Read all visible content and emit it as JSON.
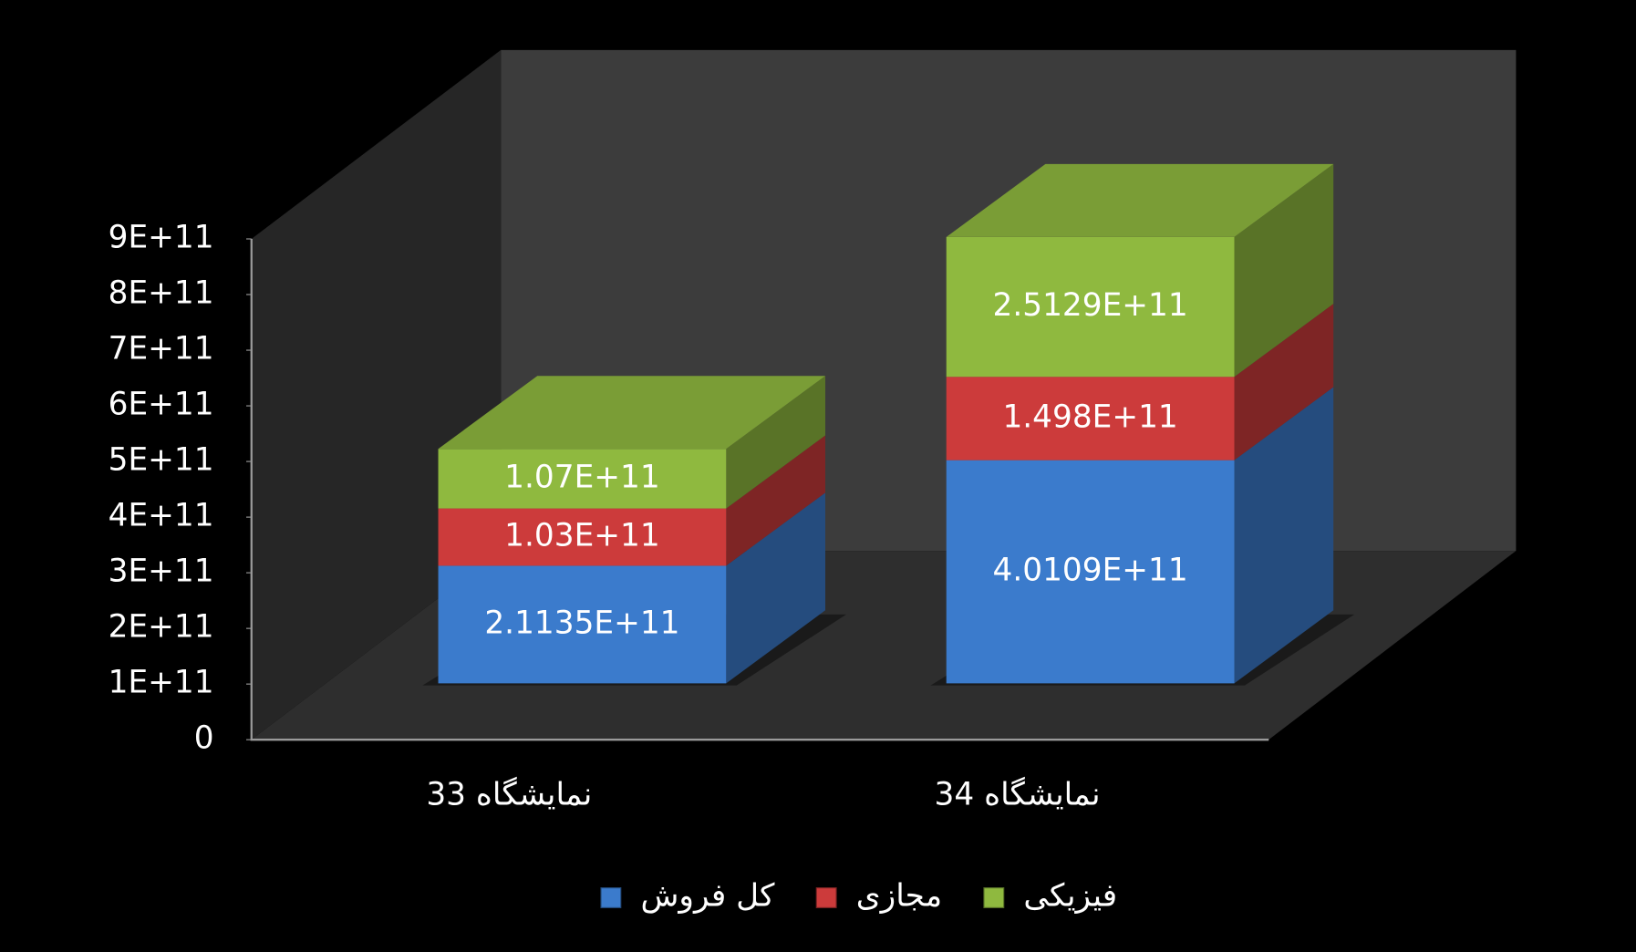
{
  "chart_data": {
    "type": "bar3d-stacked",
    "categories": [
      "نمایشگاه 33",
      "نمایشگاه 34"
    ],
    "series": [
      {
        "name": "کل فروش",
        "color": "#3b7bcc",
        "values": [
          211350000000,
          401090000000
        ],
        "value_labels": [
          "2.1135E+11",
          "4.0109E+11"
        ]
      },
      {
        "name": "مجازی",
        "color": "#cc3b3b",
        "values": [
          103000000000,
          149800000000
        ],
        "value_labels": [
          "1.03E+11",
          "1.498E+11"
        ]
      },
      {
        "name": "فیزیکی",
        "color": "#8fb93f",
        "values": [
          107000000000,
          251290000000
        ],
        "value_labels": [
          "1.07E+11",
          "2.5129E+11"
        ]
      }
    ],
    "ylim": [
      0,
      900000000000
    ],
    "yticks": [
      0,
      {
        "value": 100000000000,
        "label": "1E+11"
      },
      {
        "value": 200000000000,
        "label": "2E+11"
      },
      {
        "value": 300000000000,
        "label": "3E+11"
      },
      {
        "value": 400000000000,
        "label": "4E+11"
      },
      {
        "value": 500000000000,
        "label": "5E+11"
      },
      {
        "value": 600000000000,
        "label": "6E+11"
      },
      {
        "value": 700000000000,
        "label": "7E+11"
      },
      {
        "value": 800000000000,
        "label": "8E+11"
      },
      {
        "value": 900000000000,
        "label": "9E+11"
      }
    ],
    "legend": "bottom"
  }
}
